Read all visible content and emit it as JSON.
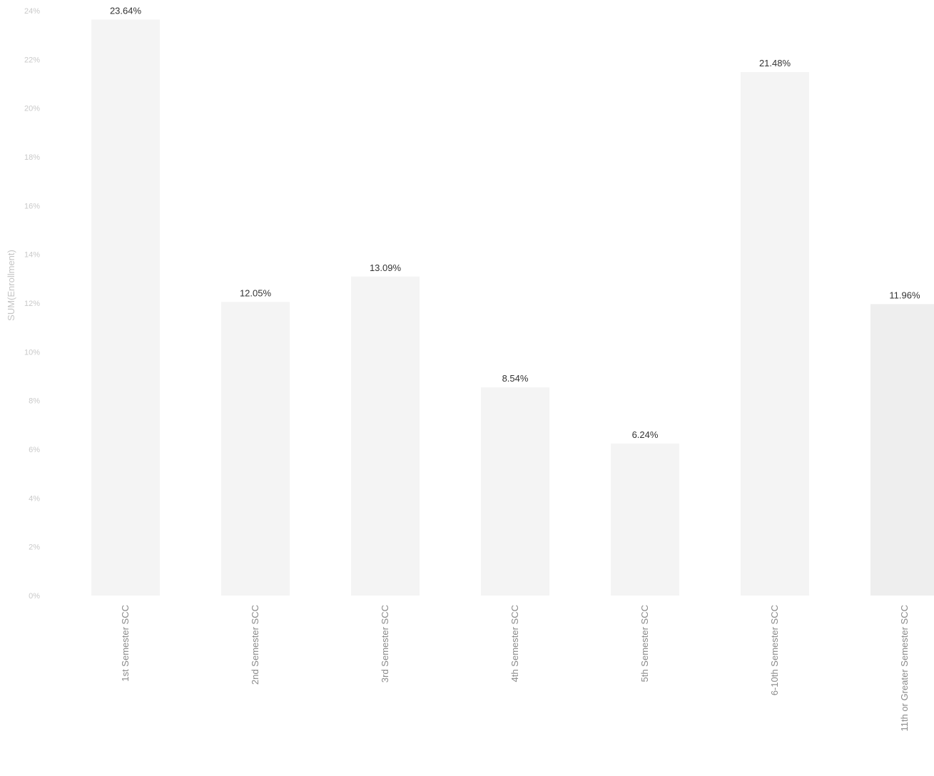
{
  "chart_data": {
    "type": "bar",
    "title": "",
    "xlabel": "",
    "ylabel": "SUM(Enrollment)",
    "categories": [
      "1st Semester SCC",
      "2nd Semester SCC",
      "3rd Semester SCC",
      "4th Semester SCC",
      "5th Semester SCC",
      "6-10th Semester SCC",
      "11th or Greater Semester SCC"
    ],
    "values": [
      23.64,
      12.05,
      13.09,
      8.54,
      6.24,
      21.48,
      11.96
    ],
    "data_labels": [
      "23.64%",
      "12.05%",
      "13.09%",
      "8.54%",
      "6.24%",
      "21.48%",
      "11.96%"
    ],
    "y_ticks": [
      0,
      2,
      4,
      6,
      8,
      10,
      12,
      14,
      16,
      18,
      20,
      22,
      24
    ],
    "y_tick_labels": [
      "0%",
      "2%",
      "4%",
      "6%",
      "8%",
      "10%",
      "12%",
      "14%",
      "16%",
      "18%",
      "20%",
      "22%",
      "24%"
    ],
    "ylim": [
      0,
      24
    ],
    "grid": false,
    "legend": "none",
    "colors": {
      "bar": "#f4f4f4",
      "bar_last": "#eeeeee",
      "data_label": "#333333",
      "tick_label": "#c9c9c9",
      "category_label": "#8a8a8a"
    }
  }
}
